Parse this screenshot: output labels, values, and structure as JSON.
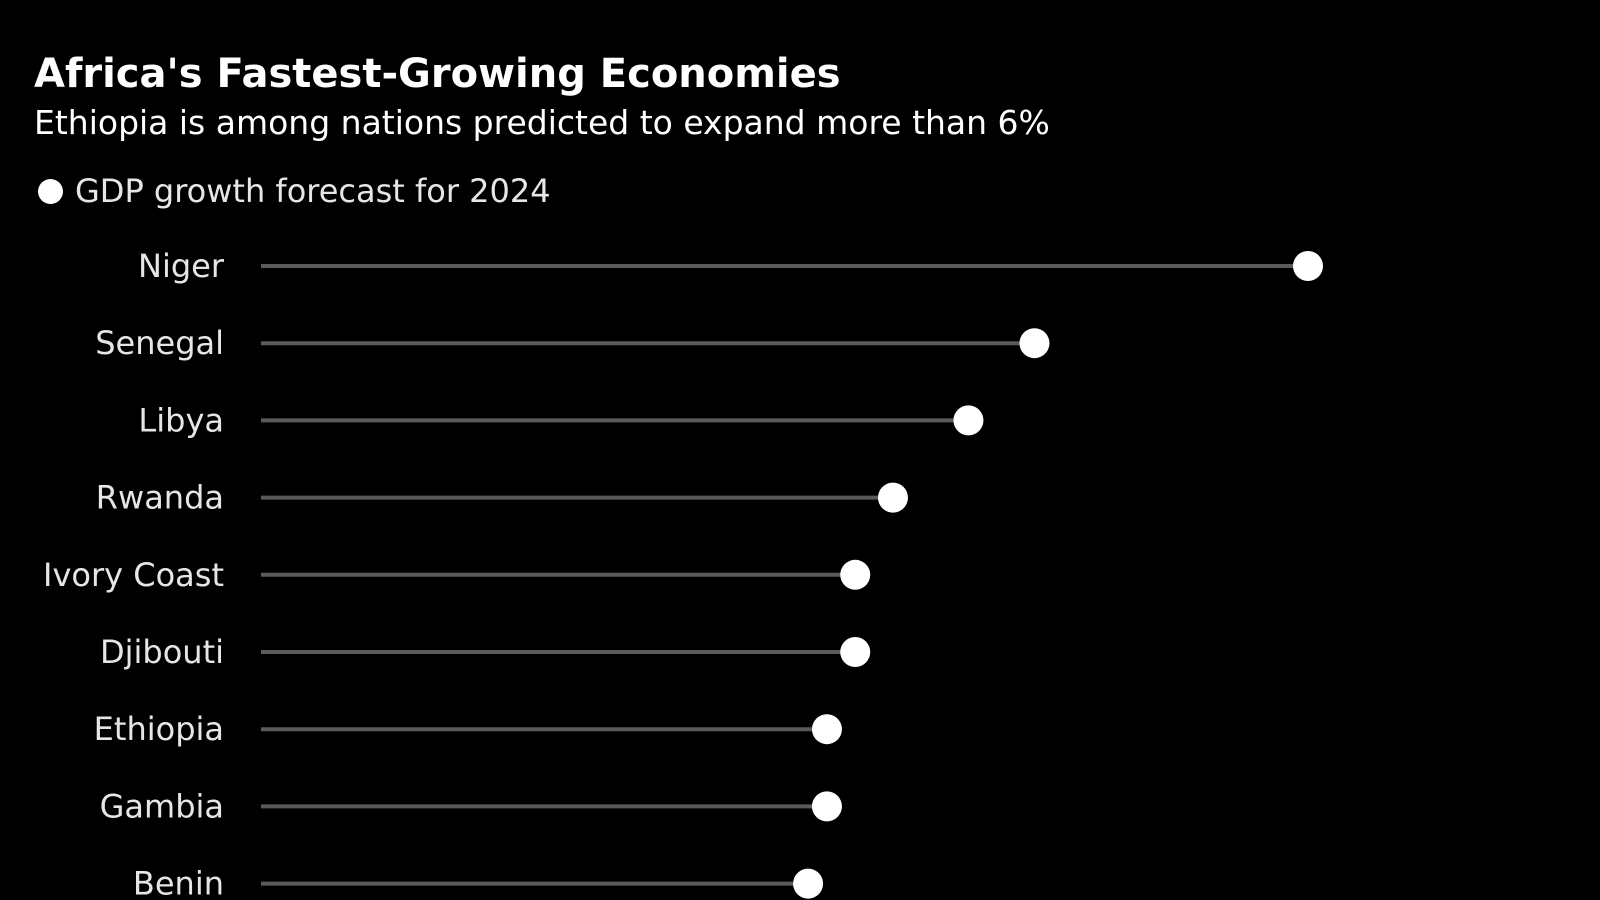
{
  "chart_data": {
    "type": "lollipop",
    "title": "Africa's Fastest-Growing Economies",
    "subtitle": "Ethiopia is among nations predicted to expand more than 6%",
    "legend": [
      {
        "label": "GDP growth forecast for 2024",
        "color": "#ffffff",
        "marker": "circle"
      }
    ],
    "legend_placement": "top-left",
    "categories": [
      "Niger",
      "Senegal",
      "Libya",
      "Rwanda",
      "Ivory Coast",
      "Djibouti",
      "Ethiopia",
      "Gambia",
      "Benin"
    ],
    "series": [
      {
        "name": "GDP growth forecast for 2024",
        "values": [
          11.1,
          8.2,
          7.5,
          6.7,
          6.3,
          6.3,
          6.0,
          6.0,
          5.8
        ]
      }
    ],
    "xlim": [
      0,
      11.1
    ],
    "grid": false,
    "colors": {
      "background": "#000000",
      "text": "#ffffff",
      "label": "#e6e6e6",
      "stem": "#5a5a5a",
      "marker": "#ffffff"
    }
  }
}
